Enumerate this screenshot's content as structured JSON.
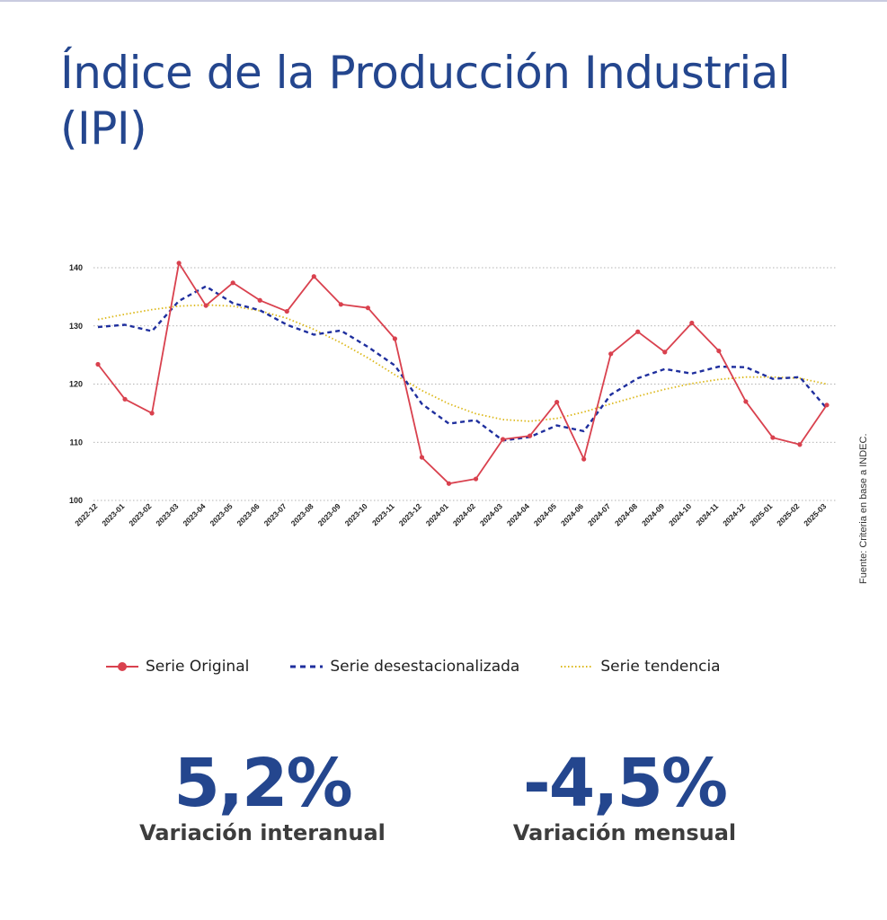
{
  "title": "Índice de la Producción Industrial (IPI)",
  "source": "Fuente: Criteria en base a INDEC.",
  "colors": {
    "title": "#24468e",
    "original": "#d9414e",
    "desest": "#1f2f9e",
    "trend": "#dcb81a",
    "stat": "#24468e"
  },
  "legend": {
    "original": "Serie Original",
    "desest": "Serie desestacionalizada",
    "trend": "Serie tendencia"
  },
  "stats": {
    "interanual": {
      "value": "5,2%",
      "label": "Variación interanual"
    },
    "mensual": {
      "value": "-4,5%",
      "label": "Variación mensual"
    }
  },
  "chart_data": {
    "type": "line",
    "categories": [
      "2022-12",
      "2023-01",
      "2023-02",
      "2023-03",
      "2023-04",
      "2023-05",
      "2023-06",
      "2023-07",
      "2023-08",
      "2023-09",
      "2023-10",
      "2023-11",
      "2023-12",
      "2024-01",
      "2024-02",
      "2024-03",
      "2024-04",
      "2024-05",
      "2024-06",
      "2024-07",
      "2024-08",
      "2024-09",
      "2024-10",
      "2024-11",
      "2024-12",
      "2025-01",
      "2025-02",
      "2025-03"
    ],
    "ylim": [
      100,
      140
    ],
    "yticks": [
      100,
      110,
      120,
      130,
      140
    ],
    "grid": true,
    "legend_position": "bottom",
    "series": [
      {
        "key": "original",
        "name": "Serie Original",
        "values": [
          123.4,
          117.4,
          115.0,
          140.8,
          133.5,
          137.4,
          134.4,
          132.5,
          138.5,
          133.7,
          133.1,
          127.8,
          107.4,
          102.9,
          103.7,
          110.5,
          111.1,
          116.9,
          107.1,
          125.2,
          129.0,
          125.5,
          130.5,
          125.7,
          117.0,
          110.8,
          109.6,
          116.4
        ]
      },
      {
        "key": "desest",
        "name": "Serie desestacionalizada",
        "values": [
          129.8,
          130.2,
          129.1,
          134.3,
          136.8,
          133.9,
          132.7,
          130.2,
          128.5,
          129.2,
          126.4,
          123.2,
          116.6,
          113.2,
          113.8,
          110.3,
          110.9,
          112.9,
          111.9,
          118.2,
          121.0,
          122.6,
          121.8,
          123.0,
          122.9,
          120.9,
          121.2,
          115.8
        ]
      },
      {
        "key": "trend",
        "name": "Serie tendencia",
        "values": [
          131.1,
          132.0,
          132.8,
          133.4,
          133.6,
          133.4,
          132.6,
          131.3,
          129.4,
          127.1,
          124.5,
          121.6,
          118.9,
          116.6,
          114.9,
          113.9,
          113.6,
          114.1,
          115.2,
          116.6,
          117.9,
          119.1,
          120.1,
          120.8,
          121.2,
          121.2,
          121.0,
          120.0
        ]
      }
    ]
  }
}
